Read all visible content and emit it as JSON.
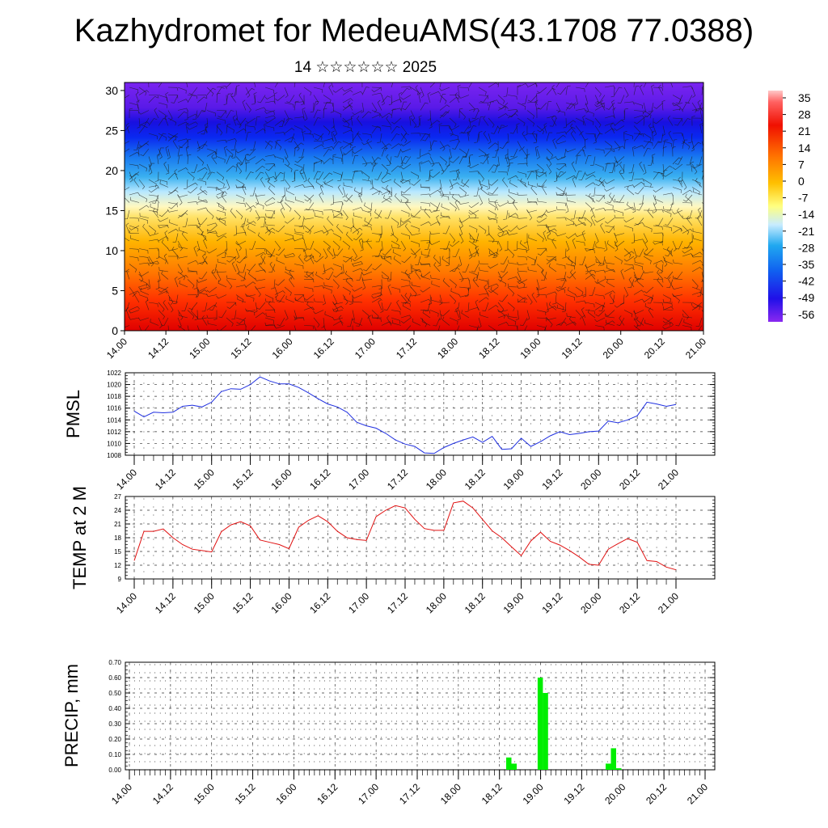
{
  "header": {
    "title": "Kazhydromet for MedeuAMS(43.1708 77.0388)",
    "subtitle": "14 ☆☆☆☆☆☆ 2025"
  },
  "time_labels": [
    "14.00",
    "14.12",
    "15.00",
    "15.12",
    "16.00",
    "16.12",
    "17.00",
    "17.12",
    "18.00",
    "18.12",
    "19.00",
    "19.12",
    "20.00",
    "20.12",
    "21.00"
  ],
  "colors": {
    "pmsl_line": "#1f2fe0",
    "temp_line": "#e01010",
    "precip_bar": "#00ee00"
  },
  "chart_data": [
    {
      "type": "heatmap",
      "title": "",
      "xlabel": "",
      "ylabel": "",
      "y_ticks": [
        0,
        5,
        10,
        15,
        20,
        25,
        30
      ],
      "ylim": [
        0,
        31
      ],
      "colorbar_labels": [
        "35",
        "28",
        "21",
        "14",
        "7",
        "0",
        "-7",
        "-14",
        "-21",
        "-28",
        "-35",
        "-42",
        "-49",
        "-56"
      ],
      "colorbar_range": [
        -63,
        42
      ],
      "overlay": "wind barbs"
    },
    {
      "type": "line",
      "ylabel": "PMSL",
      "y_ticks": [
        1008,
        1010,
        1012,
        1014,
        1016,
        1018,
        1020,
        1022
      ],
      "ylim": [
        1008,
        1022
      ],
      "values": [
        1015.5,
        1014.5,
        1015.3,
        1015.2,
        1015.3,
        1016.3,
        1016.5,
        1016.2,
        1017,
        1018.8,
        1019.3,
        1019.2,
        1020,
        1021.3,
        1020.6,
        1020.1,
        1020.1,
        1019.5,
        1018.6,
        1017.6,
        1016.7,
        1016.2,
        1015.3,
        1013.6,
        1013,
        1012.6,
        1011.7,
        1010.6,
        1009.9,
        1009.5,
        1008.4,
        1008.3,
        1009.3,
        1010,
        1010.6,
        1011.1,
        1010.2,
        1011.2,
        1009,
        1009.1,
        1010.9,
        1009.5,
        1010.3,
        1011.3,
        1012,
        1011.5,
        1011.7,
        1012,
        1012.1,
        1013.8,
        1013.5,
        1014,
        1014.7,
        1017,
        1016.7,
        1016.3,
        1016.6
      ]
    },
    {
      "type": "line",
      "ylabel": "TEMP at 2 M",
      "y_ticks": [
        9,
        12,
        15,
        18,
        21,
        24,
        27
      ],
      "ylim": [
        9,
        27
      ],
      "values": [
        13,
        19.4,
        19.4,
        19.9,
        18,
        16.5,
        15.5,
        15.2,
        14.9,
        19.3,
        20.8,
        21.5,
        20.6,
        17.5,
        17,
        16.5,
        15.6,
        20.3,
        21.8,
        22.8,
        21.5,
        19.4,
        18,
        17.6,
        17.4,
        22.6,
        24,
        25,
        24.5,
        22,
        20,
        19.6,
        19.6,
        25.6,
        26,
        24.5,
        22,
        19.5,
        18,
        16,
        14.1,
        17.3,
        19.2,
        17.2,
        16.4,
        15.2,
        13.8,
        12.2,
        12,
        15.5,
        16.7,
        17.8,
        17,
        13,
        12.8,
        11.6,
        11
      ]
    },
    {
      "type": "bar",
      "ylabel": "PRECIP, mm",
      "y_ticks": [
        "0.00",
        "0.10",
        "0.20",
        "0.30",
        "0.40",
        "0.50",
        "0.60",
        "0.70"
      ],
      "ylim": [
        0,
        0.7
      ],
      "values": [
        0,
        0,
        0,
        0,
        0,
        0,
        0,
        0,
        0,
        0,
        0,
        0,
        0,
        0,
        0,
        0,
        0,
        0,
        0,
        0,
        0,
        0,
        0,
        0,
        0,
        0,
        0,
        0,
        0,
        0,
        0,
        0,
        0,
        0,
        0,
        0,
        0,
        0,
        0,
        0,
        0,
        0,
        0,
        0,
        0,
        0,
        0,
        0,
        0,
        0,
        0,
        0,
        0,
        0,
        0,
        0,
        0,
        0,
        0,
        0,
        0,
        0,
        0,
        0,
        0,
        0,
        0,
        0,
        0,
        0,
        0,
        0,
        0.08,
        0.04,
        0,
        0,
        0,
        0,
        0.6,
        0.5,
        0,
        0,
        0,
        0,
        0,
        0,
        0,
        0,
        0,
        0,
        0,
        0.04,
        0.14,
        0.01,
        0,
        0,
        0,
        0,
        0,
        0,
        0,
        0,
        0,
        0,
        0,
        0,
        0,
        0,
        0,
        0
      ]
    }
  ]
}
